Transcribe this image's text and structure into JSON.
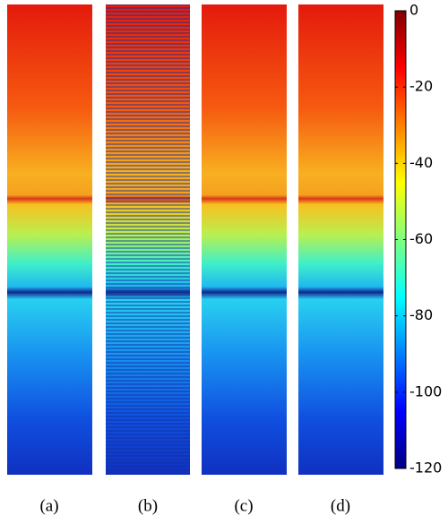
{
  "chart_data": {
    "type": "image-panels",
    "panels": [
      "(a)",
      "(b)",
      "(c)",
      "(d)"
    ],
    "colorbar": {
      "lim": [
        -120,
        0
      ],
      "ticks": [
        0,
        -20,
        -40,
        -60,
        -80,
        -100,
        -120
      ]
    }
  }
}
